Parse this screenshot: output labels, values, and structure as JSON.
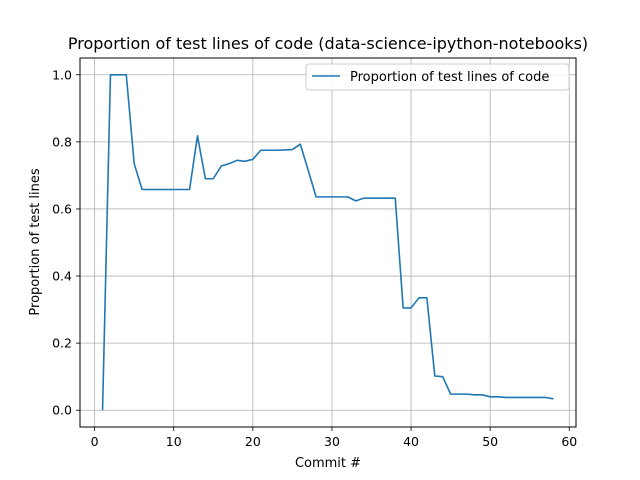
{
  "chart_data": {
    "type": "line",
    "title": "Proportion of test lines of code (data-science-ipython-notebooks)",
    "xlabel": "Commit #",
    "ylabel": "Proportion of test lines",
    "xlim": [
      -1.85,
      60.85
    ],
    "ylim": [
      -0.05,
      1.05
    ],
    "grid": true,
    "legend_position": "upper-right",
    "line_color": "#1f77b4",
    "x_ticks": [
      0,
      10,
      20,
      30,
      40,
      50,
      60
    ],
    "y_ticks": [
      0.0,
      0.2,
      0.4,
      0.6,
      0.8,
      1.0
    ],
    "x_tick_labels": [
      "0",
      "10",
      "20",
      "30",
      "40",
      "50",
      "60"
    ],
    "y_tick_labels": [
      "0.0",
      "0.2",
      "0.4",
      "0.6",
      "0.8",
      "1.0"
    ],
    "series": [
      {
        "name": "Proportion of test lines of code",
        "x": [
          1,
          2,
          3,
          4,
          5,
          6,
          7,
          8,
          9,
          10,
          11,
          12,
          13,
          14,
          15,
          16,
          17,
          18,
          19,
          20,
          21,
          22,
          23,
          24,
          25,
          26,
          27,
          28,
          29,
          30,
          31,
          32,
          33,
          34,
          35,
          36,
          37,
          38,
          39,
          40,
          41,
          42,
          43,
          44,
          45,
          46,
          47,
          48,
          49,
          50,
          51,
          52,
          53,
          54,
          55,
          56,
          57,
          58
        ],
        "y": [
          0.0,
          1.0,
          1.0,
          1.0,
          0.735,
          0.658,
          0.658,
          0.658,
          0.658,
          0.658,
          0.658,
          0.658,
          0.818,
          0.69,
          0.69,
          0.728,
          0.735,
          0.745,
          0.742,
          0.748,
          0.775,
          0.775,
          0.775,
          0.776,
          0.777,
          0.793,
          0.715,
          0.636,
          0.636,
          0.636,
          0.636,
          0.636,
          0.624,
          0.632,
          0.632,
          0.632,
          0.632,
          0.632,
          0.305,
          0.305,
          0.335,
          0.335,
          0.102,
          0.1,
          0.048,
          0.048,
          0.048,
          0.046,
          0.046,
          0.04,
          0.04,
          0.038,
          0.038,
          0.038,
          0.038,
          0.038,
          0.038,
          0.034
        ]
      }
    ]
  }
}
